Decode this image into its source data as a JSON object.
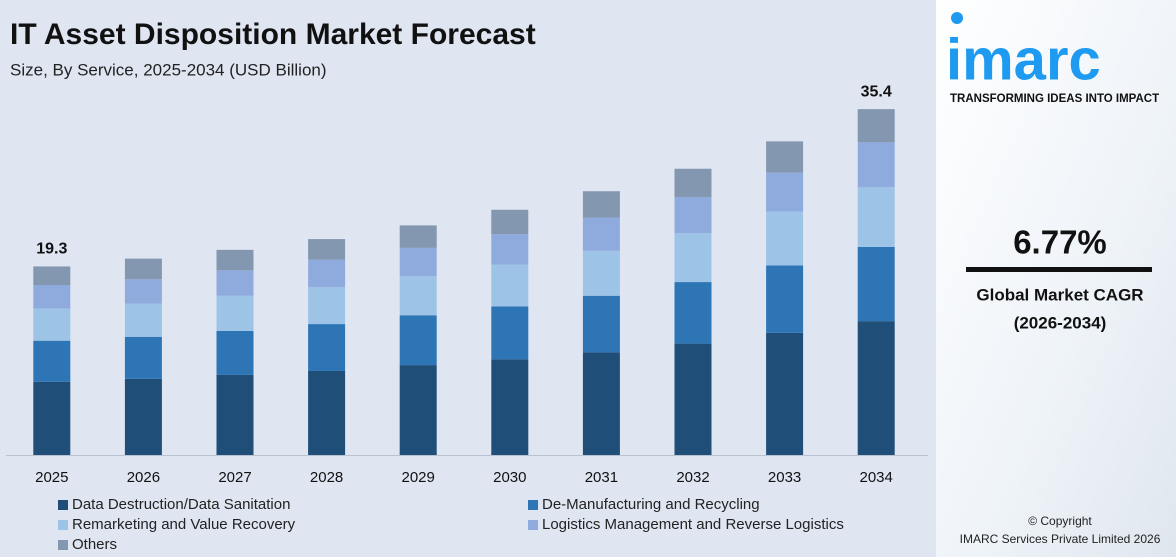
{
  "chart_data": {
    "type": "stacked_bar",
    "title": "IT Asset Disposition Market Forecast",
    "subtitle": "Size, By Service, 2025-2034 (USD Billion)",
    "categories": [
      "2025",
      "2026",
      "2027",
      "2028",
      "2029",
      "2030",
      "2031",
      "2032",
      "2033",
      "2034"
    ],
    "series": [
      {
        "name": "Data Destruction/Data Sanitation",
        "color": "#1f4e79",
        "values": [
          7.5,
          7.8,
          8.2,
          8.6,
          9.2,
          9.8,
          10.5,
          11.4,
          12.5,
          13.7
        ]
      },
      {
        "name": "De-Manufacturing and Recycling",
        "color": "#2e75b6",
        "values": [
          4.2,
          4.3,
          4.5,
          4.8,
          5.1,
          5.4,
          5.8,
          6.3,
          6.9,
          7.6
        ]
      },
      {
        "name": "Remarketing and Value Recovery",
        "color": "#9dc3e6",
        "values": [
          3.3,
          3.4,
          3.6,
          3.8,
          4.0,
          4.3,
          4.6,
          5.0,
          5.5,
          6.1
        ]
      },
      {
        "name": "Logistics Management and Reverse Logistics",
        "color": "#8faadc",
        "values": [
          2.4,
          2.5,
          2.6,
          2.8,
          2.9,
          3.1,
          3.4,
          3.7,
          4.0,
          4.6
        ]
      },
      {
        "name": "Others",
        "color": "#8497b0",
        "values": [
          1.9,
          2.1,
          2.1,
          2.1,
          2.3,
          2.5,
          2.7,
          2.9,
          3.2,
          3.4
        ]
      }
    ],
    "totals": [
      19.3,
      null,
      null,
      null,
      null,
      null,
      null,
      null,
      null,
      35.4
    ],
    "ylim": [
      0,
      37
    ]
  },
  "sidebar": {
    "logo": "imarc",
    "tagline": "TRANSFORMING IDEAS INTO IMPACT",
    "cagr": "6.77%",
    "cagr_label": "Global Market CAGR",
    "cagr_period": "(2026-2034)",
    "copyright": "© Copyright",
    "company": "IMARC Services Private Limited 2026"
  }
}
